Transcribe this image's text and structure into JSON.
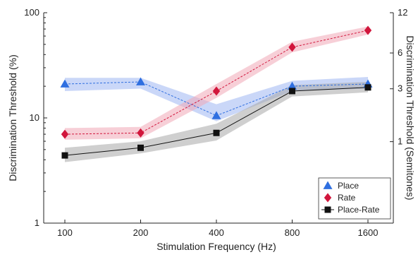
{
  "chart_data": {
    "type": "line",
    "title": "",
    "xlabel": "Stimulation Frequency (Hz)",
    "ylabel": "Discrimination Threshold (%)",
    "ylabel_right": "Discrimination Threshold (Semitones)",
    "x_scale": "log2",
    "y_scale": "log",
    "categories": [
      "100",
      "200",
      "400",
      "800",
      "1600"
    ],
    "x": [
      100,
      200,
      400,
      800,
      1600
    ],
    "ylim": [
      1,
      100
    ],
    "y_ticks": [
      "1",
      "10",
      "100"
    ],
    "y_right_ticks": [
      "1",
      "3",
      "6",
      "12"
    ],
    "y_right_tick_values_semitones": [
      1,
      3,
      6,
      12
    ],
    "grid": false,
    "legend_position": "bottom-right",
    "series": [
      {
        "name": "Place",
        "marker": "triangle",
        "color": "#2f6fe0",
        "band_color": "#9fb6f2",
        "line_style": "dashed",
        "values": [
          21,
          22,
          10.5,
          20,
          21
        ],
        "lower": [
          18,
          19,
          9.3,
          18,
          19
        ],
        "upper": [
          24,
          24,
          13.5,
          22.5,
          24.5
        ]
      },
      {
        "name": "Rate",
        "marker": "diamond",
        "color": "#d1163c",
        "band_color": "#f0a8b6",
        "line_style": "dashed",
        "values": [
          7,
          7.2,
          18,
          47,
          68
        ],
        "lower": [
          6.2,
          6.4,
          15.5,
          42,
          62
        ],
        "upper": [
          8,
          8.2,
          21,
          53,
          74
        ]
      },
      {
        "name": "Place-Rate",
        "marker": "square",
        "color": "#111111",
        "band_color": "#a8a8a8",
        "line_style": "solid",
        "values": [
          4.4,
          5.2,
          7.2,
          18,
          19.5
        ],
        "lower": [
          3.8,
          4.6,
          6.1,
          16,
          17.5
        ],
        "upper": [
          5.2,
          6.0,
          8.8,
          20.5,
          22
        ]
      }
    ]
  }
}
